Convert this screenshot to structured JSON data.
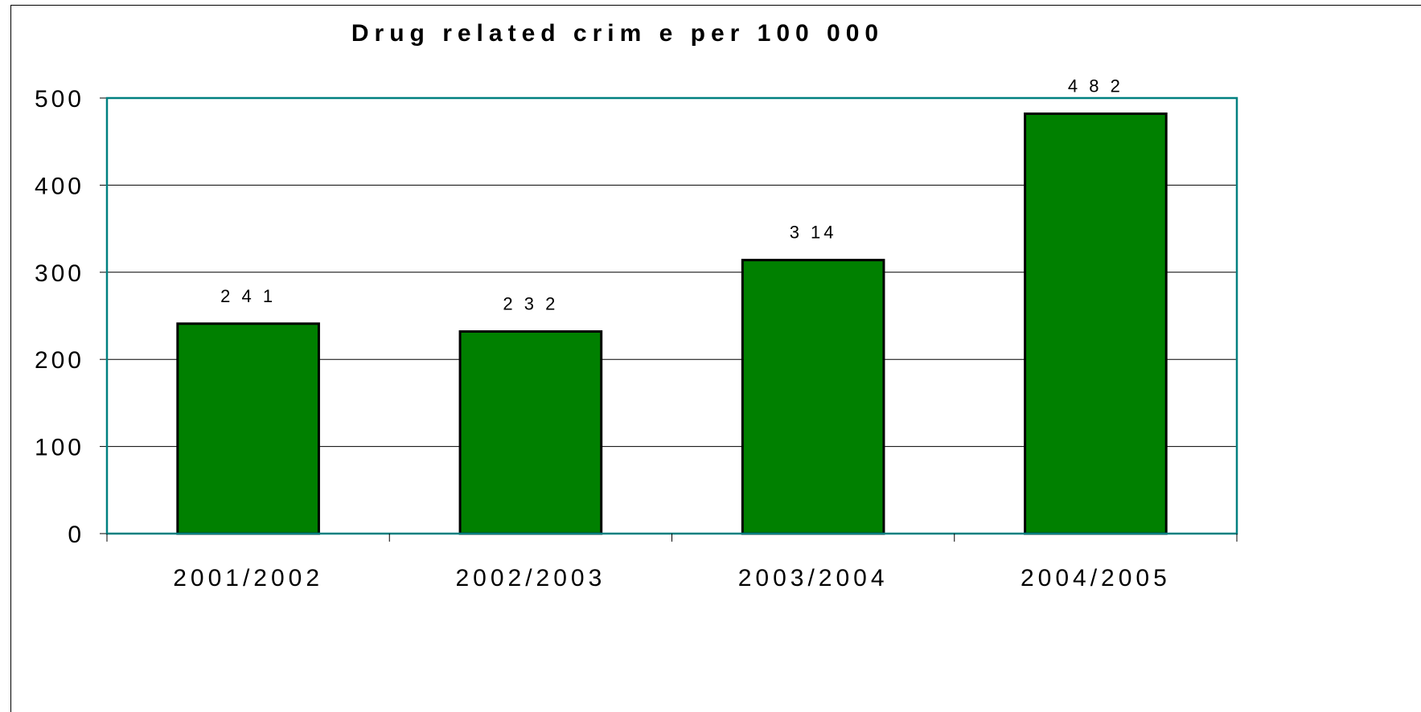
{
  "chart_data": {
    "type": "bar",
    "title": "Drug related crim e per 100 000",
    "categories": [
      "2001/2002",
      "2002/2003",
      "2003/2004",
      "2004/2005"
    ],
    "values": [
      241,
      232,
      314,
      482
    ],
    "data_labels": [
      "2 4 1",
      "2 3 2",
      "3 14",
      "4 8 2"
    ],
    "xlabel": "",
    "ylabel": "",
    "ylim": [
      0,
      500
    ],
    "yticks": [
      0,
      100,
      200,
      300,
      400,
      500
    ],
    "grid": true,
    "legend": "none",
    "colors": {
      "bar": "#008000",
      "bar_edge": "#000000",
      "plot_border": "#008080",
      "grid": "#000000"
    }
  }
}
